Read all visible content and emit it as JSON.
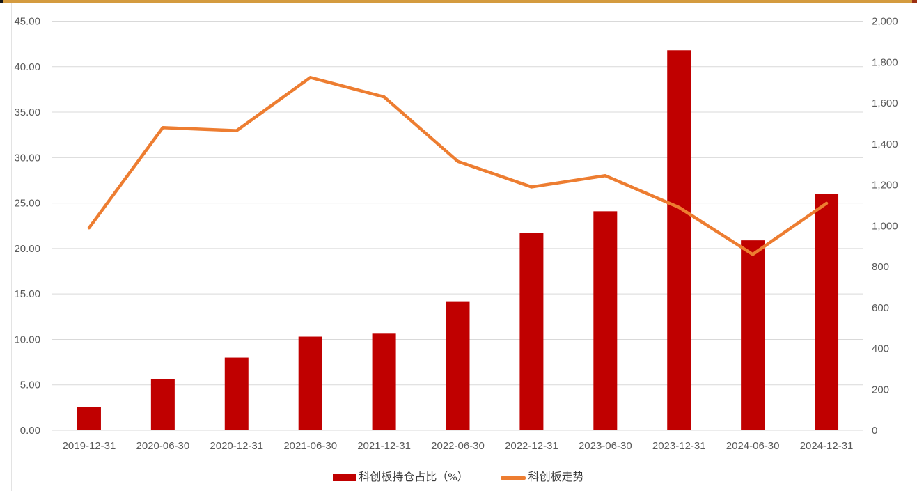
{
  "accent_bar": {
    "color": "#D49B3F",
    "left_cap_color": "#141414",
    "right_cap_color": "#9C2F13"
  },
  "chart_data": {
    "type": "combo",
    "categories": [
      "2019-12-31",
      "2020-06-30",
      "2020-12-31",
      "2021-06-30",
      "2021-12-31",
      "2022-06-30",
      "2022-12-31",
      "2023-06-30",
      "2023-12-31",
      "2024-06-30",
      "2024-12-31"
    ],
    "series": [
      {
        "name": "科创板持仓占比（%）",
        "type": "bar",
        "axis": "left",
        "color": "#C00000",
        "values": [
          2.6,
          5.6,
          8.0,
          10.3,
          10.7,
          14.2,
          21.7,
          24.1,
          41.8,
          20.9,
          26.0
        ]
      },
      {
        "name": "科创板走势",
        "type": "line",
        "axis": "right",
        "color": "#ED7D31",
        "values": [
          990,
          1480,
          1465,
          1725,
          1630,
          1315,
          1190,
          1245,
          1090,
          860,
          1110
        ]
      }
    ],
    "left_axis": {
      "min": 0,
      "max": 45,
      "step": 5,
      "tick_labels": [
        "45.00",
        "40.00",
        "35.00",
        "30.00",
        "25.00",
        "20.00",
        "15.00",
        "10.00",
        "5.00",
        "0.00"
      ]
    },
    "right_axis": {
      "min": 0,
      "max": 2000,
      "step": 200,
      "tick_labels": [
        "2,000",
        "1,800",
        "1,600",
        "1,400",
        "1,200",
        "1,000",
        "800",
        "600",
        "400",
        "200",
        "0"
      ]
    },
    "grid": "horizontal",
    "gridline_color": "#D9D9D9",
    "axis_text_color": "#595959",
    "legend_position": "bottom",
    "title": "",
    "xlabel": "",
    "ylabel": ""
  }
}
